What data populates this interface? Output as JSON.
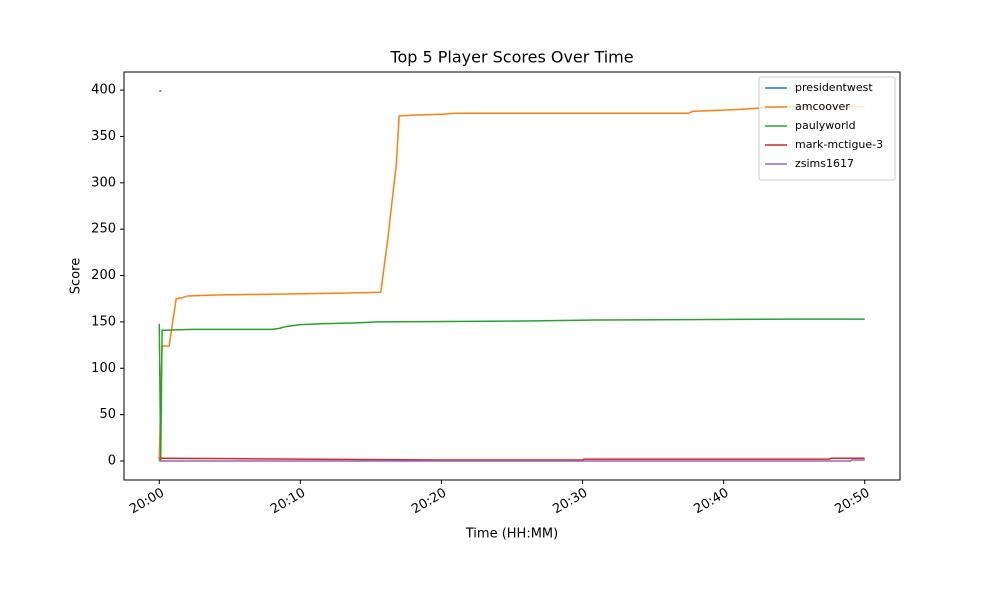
{
  "chart_data": {
    "type": "line",
    "title": "Top 5 Player Scores Over Time",
    "xlabel": "Time (HH:MM)",
    "ylabel": "Score",
    "xlim": [
      -2.5,
      52.5
    ],
    "xticks": [
      {
        "value": 0,
        "label": "20:00"
      },
      {
        "value": 10,
        "label": "20:10"
      },
      {
        "value": 20,
        "label": "20:20"
      },
      {
        "value": 30,
        "label": "20:30"
      },
      {
        "value": 40,
        "label": "20:40"
      },
      {
        "value": 50,
        "label": "20:50"
      }
    ],
    "ylim": [
      -20.5,
      419.5
    ],
    "yticks": [
      0,
      50,
      100,
      150,
      200,
      250,
      300,
      350,
      400
    ],
    "legend": "upper right",
    "series": [
      {
        "name": "presidentwest",
        "color": "#1f77b4",
        "x": [
          0,
          0.15
        ],
        "values": [
          399,
          399
        ]
      },
      {
        "name": "amcoover",
        "color": "#ff7f0e",
        "x": [
          0,
          0.2,
          0.3,
          0.7,
          1.0,
          1.2,
          1.6,
          2.0,
          4.0,
          8.5,
          13.0,
          15.7,
          16.2,
          16.8,
          17.0,
          18.0,
          20.0,
          21.0,
          37.5,
          37.8,
          41.0,
          42.0,
          44.0,
          50.0
        ],
        "values": [
          0,
          124,
          124,
          124,
          155,
          175,
          176,
          178,
          179,
          180,
          181,
          182,
          240,
          320,
          372,
          373,
          374,
          375,
          375,
          377,
          379,
          380,
          382,
          382
        ]
      },
      {
        "name": "paulyworld",
        "color": "#2ca02c",
        "x": [
          0,
          0.1,
          0.2,
          0.3,
          2.3,
          8.0,
          8.5,
          9.0,
          10.0,
          11.5,
          14.0,
          15.5,
          26.0,
          31.0,
          45.5,
          50.0
        ],
        "values": [
          148,
          0,
          141,
          141,
          142,
          142,
          143,
          145,
          147,
          148,
          149,
          150,
          151,
          152,
          153,
          153
        ]
      },
      {
        "name": "mark-mctigue-3",
        "color": "#d62728",
        "x": [
          0,
          5,
          10,
          15,
          20,
          30,
          30.1,
          47.5,
          47.6,
          50
        ],
        "values": [
          3,
          2.5,
          2,
          1.5,
          1,
          1,
          2,
          2,
          3,
          3
        ]
      },
      {
        "name": "zsims1617",
        "color": "#9467bd",
        "x": [
          0,
          49,
          49.1,
          50
        ],
        "values": [
          0,
          0,
          1,
          1
        ]
      }
    ]
  }
}
